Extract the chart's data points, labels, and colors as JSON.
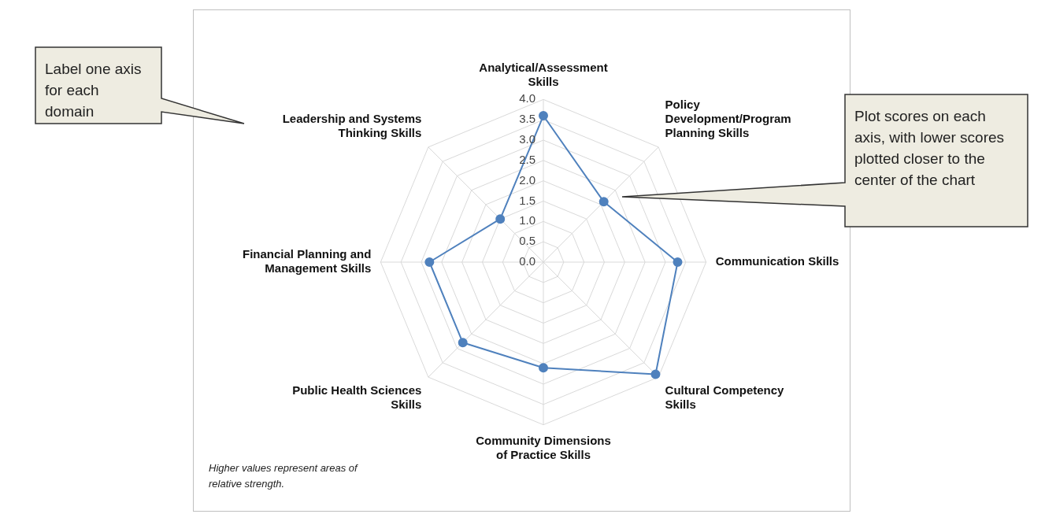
{
  "chart_data": {
    "type": "radar",
    "categories": [
      "Analytical/Assessment Skills",
      "Policy Development/Program Planning Skills",
      "Communication Skills",
      "Cultural Competency Skills",
      "Community Dimensions of Practice Skills",
      "Public Health Sciences Skills",
      "Financial Planning and Management Skills",
      "Leadership and Systems Thinking Skills"
    ],
    "series": [
      {
        "color": "#4f81bd",
        "values": [
          3.6,
          2.1,
          3.3,
          3.9,
          2.6,
          2.8,
          2.8,
          1.5
        ]
      }
    ],
    "ylim": [
      0,
      4
    ],
    "yticks": [
      {
        "value": 0,
        "label": "0.0"
      },
      {
        "value": 0.5,
        "label": "0.5"
      },
      {
        "value": 1,
        "label": "1.0"
      },
      {
        "value": 1.5,
        "label": "1.5"
      },
      {
        "value": 2,
        "label": "2.0"
      },
      {
        "value": 2.5,
        "label": "2.5"
      },
      {
        "value": 3,
        "label": "3.0"
      },
      {
        "value": 3.5,
        "label": "3.5"
      },
      {
        "value": 4,
        "label": "4.0"
      }
    ],
    "grid": true,
    "marker": "circle",
    "line_style": "solid",
    "legend": false,
    "annotations": [
      "Label one axis for each domain",
      "Plot scores on each axis, with lower scores plotted closer to the center of the chart",
      "Higher values represent areas of relative strength."
    ]
  }
}
